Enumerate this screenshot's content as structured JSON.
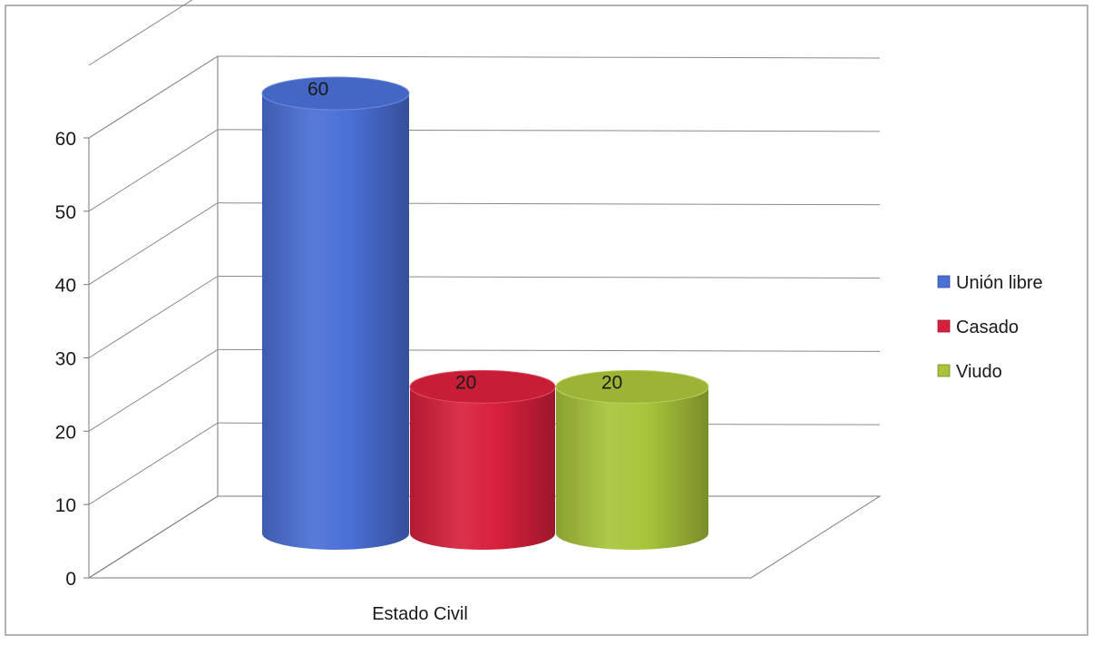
{
  "chart_data": {
    "type": "bar",
    "variant": "3d-cylinder",
    "categories": [
      "Estado Civil"
    ],
    "series": [
      {
        "name": "Unión libre",
        "values": [
          60
        ],
        "color": "#4a6fd6"
      },
      {
        "name": "Casado",
        "values": [
          20
        ],
        "color": "#d8203c"
      },
      {
        "name": "Viudo",
        "values": [
          20
        ],
        "color": "#a8c43a"
      }
    ],
    "xlabel": "",
    "ylabel": "",
    "ylim": [
      0,
      60
    ],
    "yticks": [
      0,
      10,
      20,
      30,
      40,
      50,
      60
    ],
    "grid": true,
    "data_labels": true,
    "legend": "right"
  }
}
